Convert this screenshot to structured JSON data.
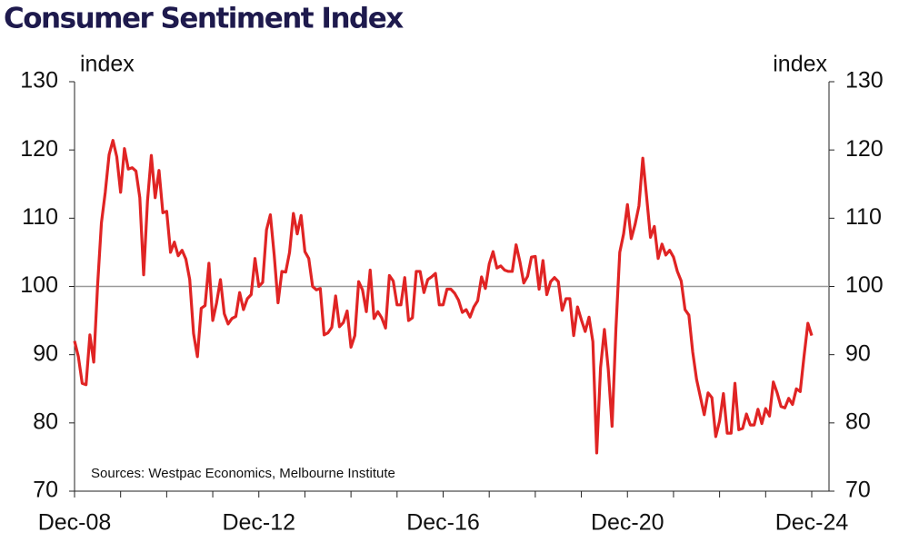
{
  "chart_data": {
    "type": "line",
    "title": "Consumer Sentiment Index",
    "y_label": "index",
    "y2_label": "index",
    "source": "Sources: Westpac Economics, Melbourne Institute",
    "x": [
      "Dec-08",
      "Jan-09",
      "Feb-09",
      "Mar-09",
      "Apr-09",
      "May-09",
      "Jun-09",
      "Jul-09",
      "Aug-09",
      "Sep-09",
      "Oct-09",
      "Nov-09",
      "Dec-09",
      "Jan-10",
      "Feb-10",
      "Mar-10",
      "Apr-10",
      "May-10",
      "Jun-10",
      "Jul-10",
      "Aug-10",
      "Sep-10",
      "Oct-10",
      "Nov-10",
      "Dec-10",
      "Jan-11",
      "Feb-11",
      "Mar-11",
      "Apr-11",
      "May-11",
      "Jun-11",
      "Jul-11",
      "Aug-11",
      "Sep-11",
      "Oct-11",
      "Nov-11",
      "Dec-11",
      "Jan-12",
      "Feb-12",
      "Mar-12",
      "Apr-12",
      "May-12",
      "Jun-12",
      "Jul-12",
      "Aug-12",
      "Sep-12",
      "Oct-12",
      "Nov-12",
      "Dec-12",
      "Jan-13",
      "Feb-13",
      "Mar-13",
      "Apr-13",
      "May-13",
      "Jun-13",
      "Jul-13",
      "Aug-13",
      "Sep-13",
      "Oct-13",
      "Nov-13",
      "Dec-13",
      "Jan-14",
      "Feb-14",
      "Mar-14",
      "Apr-14",
      "May-14",
      "Jun-14",
      "Jul-14",
      "Aug-14",
      "Sep-14",
      "Oct-14",
      "Nov-14",
      "Dec-14",
      "Jan-15",
      "Feb-15",
      "Mar-15",
      "Apr-15",
      "May-15",
      "Jun-15",
      "Jul-15",
      "Aug-15",
      "Sep-15",
      "Oct-15",
      "Nov-15",
      "Dec-15",
      "Jan-16",
      "Feb-16",
      "Mar-16",
      "Apr-16",
      "May-16",
      "Jun-16",
      "Jul-16",
      "Aug-16",
      "Sep-16",
      "Oct-16",
      "Nov-16",
      "Dec-16",
      "Jan-17",
      "Feb-17",
      "Mar-17",
      "Apr-17",
      "May-17",
      "Jun-17",
      "Jul-17",
      "Aug-17",
      "Sep-17",
      "Oct-17",
      "Nov-17",
      "Dec-17",
      "Jan-18",
      "Feb-18",
      "Mar-18",
      "Apr-18",
      "May-18",
      "Jun-18",
      "Jul-18",
      "Aug-18",
      "Sep-18",
      "Oct-18",
      "Nov-18",
      "Dec-18",
      "Jan-19",
      "Feb-19",
      "Mar-19",
      "Apr-19",
      "May-19",
      "Jun-19",
      "Jul-19",
      "Aug-19",
      "Sep-19",
      "Oct-19",
      "Nov-19",
      "Dec-19",
      "Jan-20",
      "Feb-20",
      "Mar-20",
      "Apr-20",
      "May-20",
      "Jun-20",
      "Jul-20",
      "Aug-20",
      "Sep-20",
      "Oct-20",
      "Nov-20",
      "Dec-20",
      "Jan-21",
      "Feb-21",
      "Mar-21",
      "Apr-21",
      "May-21",
      "Jun-21",
      "Jul-21",
      "Aug-21",
      "Sep-21",
      "Oct-21",
      "Nov-21",
      "Dec-21",
      "Jan-22",
      "Feb-22",
      "Mar-22",
      "Apr-22",
      "May-22",
      "Jun-22",
      "Jul-22",
      "Aug-22",
      "Sep-22",
      "Oct-22",
      "Nov-22",
      "Dec-22",
      "Jan-23",
      "Feb-23",
      "Mar-23",
      "Apr-23",
      "May-23",
      "Jun-23",
      "Jul-23",
      "Aug-23",
      "Sep-23",
      "Oct-23",
      "Nov-23",
      "Dec-23",
      "Jan-24",
      "Feb-24",
      "Mar-24",
      "Apr-24",
      "May-24",
      "Jun-24",
      "Jul-24",
      "Aug-24",
      "Sep-24",
      "Oct-24",
      "Nov-24",
      "Dec-24"
    ],
    "xticks": [
      "Dec-08",
      "Dec-12",
      "Dec-16",
      "Dec-20",
      "Dec-24"
    ],
    "series": [
      {
        "color": "#e02424",
        "values": [
          92.0,
          89.7,
          85.8,
          85.6,
          92.9,
          88.9,
          100.1,
          109.3,
          113.8,
          119.3,
          121.4,
          119.0,
          113.8,
          120.2,
          117.2,
          117.4,
          116.9,
          113.0,
          101.7,
          112.5,
          119.2,
          113.0,
          117.0,
          110.8,
          111.0,
          105.0,
          106.5,
          104.5,
          105.3,
          104.0,
          101.0,
          93.1,
          89.7,
          96.8,
          97.2,
          103.4,
          95.0,
          97.6,
          101.0,
          96.0,
          94.5,
          95.3,
          95.6,
          99.1,
          96.6,
          98.2,
          98.8,
          104.1,
          100.0,
          100.6,
          108.3,
          110.5,
          104.6,
          97.6,
          102.2,
          102.1,
          105.0,
          110.7,
          107.7,
          110.4,
          105.1,
          104.1,
          100.0,
          99.5,
          99.7,
          92.9,
          93.2,
          94.0,
          98.6,
          94.1,
          94.7,
          96.4,
          91.1,
          92.8,
          100.7,
          99.5,
          96.3,
          102.4,
          95.3,
          96.3,
          95.4,
          93.9,
          101.6,
          100.8,
          97.3,
          97.3,
          101.3,
          95.0,
          95.4,
          102.2,
          102.2,
          99.1,
          101.0,
          101.4,
          101.9,
          97.3,
          97.3,
          99.6,
          99.6,
          99.0,
          98.0,
          96.2,
          96.6,
          95.5,
          97.0,
          97.9,
          101.4,
          99.7,
          103.3,
          105.1,
          102.7,
          103.0,
          102.4,
          102.2,
          102.2,
          106.1,
          103.6,
          100.5,
          101.5,
          104.3,
          104.4,
          99.6,
          103.8,
          98.8,
          100.7,
          101.3,
          100.7,
          96.5,
          98.2,
          98.2,
          92.8,
          97.0,
          95.1,
          93.4,
          95.5,
          91.9,
          75.6,
          88.1,
          93.7,
          87.9,
          79.5,
          93.8,
          105.0,
          107.7,
          112.0,
          107.0,
          109.1,
          111.8,
          118.8,
          113.1,
          107.2,
          108.8,
          104.1,
          106.2,
          104.6,
          105.3,
          104.3,
          102.2,
          100.8,
          96.6,
          95.8,
          90.4,
          86.4,
          83.8,
          81.2,
          84.4,
          83.7,
          78.0,
          80.3,
          84.3,
          78.5,
          78.5,
          85.8,
          79.0,
          79.2,
          81.3,
          79.7,
          79.7,
          82.0,
          79.9,
          82.1,
          81.0,
          86.0,
          84.4,
          82.4,
          82.2,
          83.6,
          82.7,
          85.0,
          84.6,
          89.8,
          94.6,
          92.8
        ]
      }
    ],
    "ylim": [
      70,
      130
    ],
    "yticks": [
      70,
      80,
      90,
      100,
      110,
      120,
      130
    ],
    "y2lim": [
      70,
      130
    ],
    "y2ticks": [
      70,
      80,
      90,
      100,
      110,
      120,
      130
    ],
    "reference_line": 100,
    "title_color": "#1e1a4d"
  }
}
